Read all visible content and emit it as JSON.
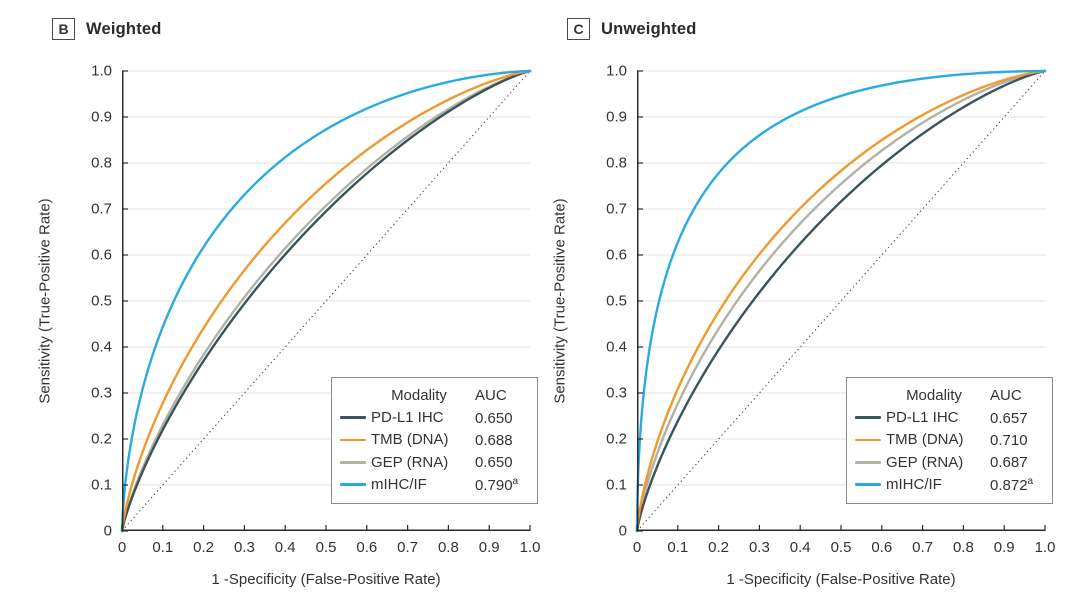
{
  "figure": {
    "background": "#ffffff",
    "axis_color": "#2b2b2b",
    "grid_color": "#e3e1df",
    "reference_line_color": "#4a4a4a",
    "text_color": "#333333"
  },
  "chart_data": [
    {
      "type": "line",
      "chart_kind": "ROC curve",
      "panel_tag": "B",
      "title": "Weighted",
      "xlabel": "1 -Specificity (False-Positive Rate)",
      "ylabel": "Sensitivity (True-Positive Rate)",
      "xlim": [
        0,
        1
      ],
      "ylim": [
        0,
        1
      ],
      "x_ticks": [
        "0",
        "0.1",
        "0.2",
        "0.3",
        "0.4",
        "0.5",
        "0.6",
        "0.7",
        "0.8",
        "0.9",
        "1.0"
      ],
      "y_ticks": [
        "0",
        "0.1",
        "0.2",
        "0.3",
        "0.4",
        "0.5",
        "0.6",
        "0.7",
        "0.8",
        "0.9",
        "1.0"
      ],
      "grid": "horizontal",
      "legend_position": "lower-right",
      "legend_headers": {
        "modality": "Modality",
        "auc": "AUC"
      },
      "series": [
        {
          "label": "PD-L1 IHC",
          "auc": 0.65,
          "auc_display": "0.650",
          "superscript": "",
          "color": "#3a535c"
        },
        {
          "label": "TMB (DNA)",
          "auc": 0.688,
          "auc_display": "0.688",
          "superscript": "",
          "color": "#f0992f"
        },
        {
          "label": "GEP (RNA)",
          "auc": 0.65,
          "auc_display": "0.650",
          "superscript": "",
          "color": "#b1b1a4"
        },
        {
          "label": "mIHC/IF",
          "auc": 0.79,
          "auc_display": "0.790",
          "superscript": "a",
          "color": "#29abe2"
        }
      ],
      "reference_line": {
        "style": "dotted",
        "from": [
          0,
          0
        ],
        "to": [
          1,
          1
        ]
      }
    },
    {
      "type": "line",
      "chart_kind": "ROC curve",
      "panel_tag": "C",
      "title": "Unweighted",
      "xlabel": "1 -Specificity (False-Positive Rate)",
      "ylabel": "Sensitivity (True-Positive Rate)",
      "xlim": [
        0,
        1
      ],
      "ylim": [
        0,
        1
      ],
      "x_ticks": [
        "0",
        "0.1",
        "0.2",
        "0.3",
        "0.4",
        "0.5",
        "0.6",
        "0.7",
        "0.8",
        "0.9",
        "1.0"
      ],
      "y_ticks": [
        "0",
        "0.1",
        "0.2",
        "0.3",
        "0.4",
        "0.5",
        "0.6",
        "0.7",
        "0.8",
        "0.9",
        "1.0"
      ],
      "grid": "horizontal",
      "legend_position": "lower-right",
      "legend_headers": {
        "modality": "Modality",
        "auc": "AUC"
      },
      "series": [
        {
          "label": "PD-L1 IHC",
          "auc": 0.657,
          "auc_display": "0.657",
          "superscript": "",
          "color": "#3a535c"
        },
        {
          "label": "TMB (DNA)",
          "auc": 0.71,
          "auc_display": "0.710",
          "superscript": "",
          "color": "#f0992f"
        },
        {
          "label": "GEP (RNA)",
          "auc": 0.687,
          "auc_display": "0.687",
          "superscript": "",
          "color": "#b1b1a4"
        },
        {
          "label": "mIHC/IF",
          "auc": 0.872,
          "auc_display": "0.872",
          "superscript": "a",
          "color": "#29abe2"
        }
      ],
      "reference_line": {
        "style": "dotted",
        "from": [
          0,
          0
        ],
        "to": [
          1,
          1
        ]
      }
    }
  ]
}
